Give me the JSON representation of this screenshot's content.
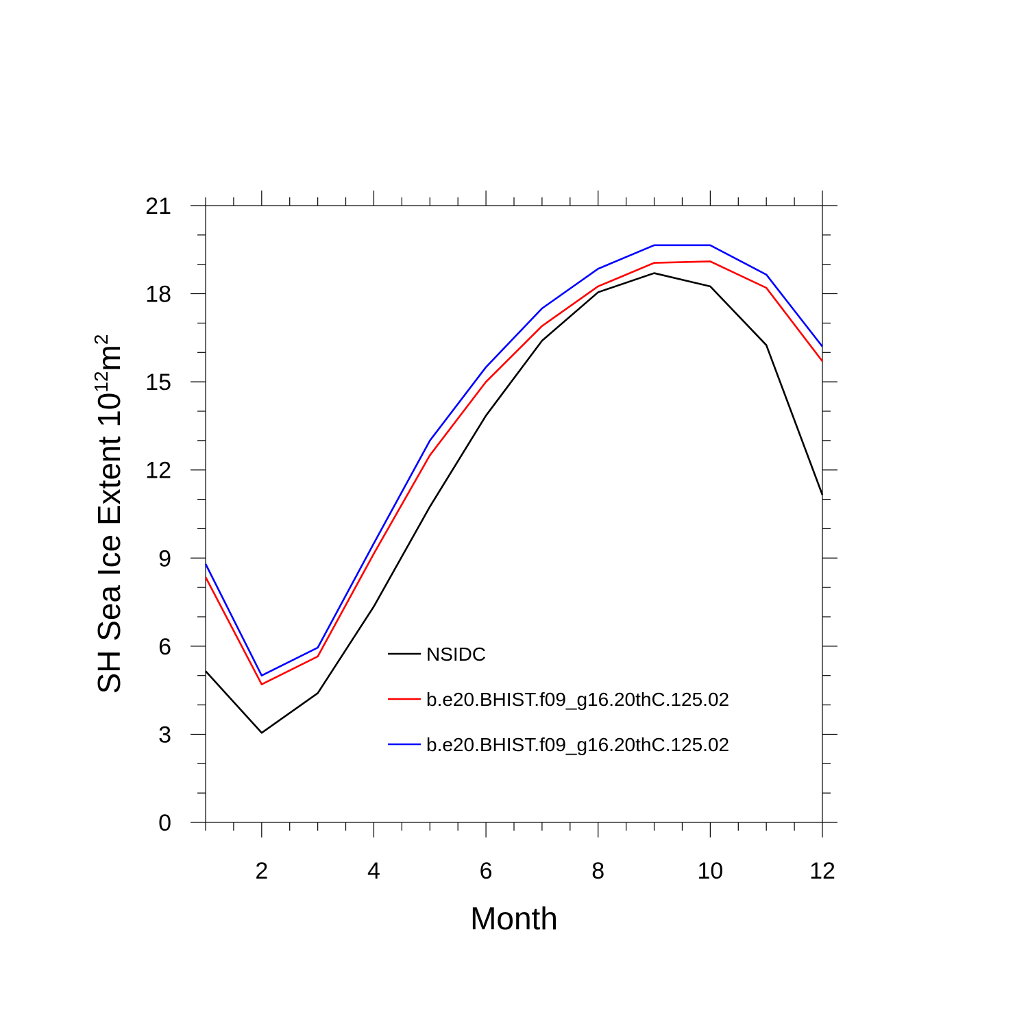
{
  "chart_data": {
    "type": "line",
    "title": "",
    "xlabel": "Month",
    "ylabel": "SH Sea Ice Extent 10",
    "ylabel_exponent": "12",
    "ylabel_unit": "m",
    "ylabel_unit_exponent": "2",
    "xlim": [
      1,
      12
    ],
    "ylim": [
      0,
      21
    ],
    "xticks": [
      "2",
      "4",
      "6",
      "8",
      "10",
      "12"
    ],
    "yticks": [
      "0",
      "3",
      "6",
      "9",
      "12",
      "15",
      "18",
      "21"
    ],
    "x": [
      1,
      2,
      3,
      4,
      5,
      6,
      7,
      8,
      9,
      10,
      11,
      12
    ],
    "series": [
      {
        "name": "NSIDC",
        "color": "#000000",
        "values": [
          5.15,
          3.05,
          4.4,
          7.35,
          10.75,
          13.85,
          16.4,
          18.05,
          18.7,
          18.25,
          16.25,
          11.15
        ]
      },
      {
        "name": "b.e20.BHIST.f09_g16.20thC.125.02",
        "color": "#ff0000",
        "values": [
          8.35,
          4.7,
          5.65,
          9.15,
          12.5,
          15.0,
          16.9,
          18.25,
          19.05,
          19.1,
          18.2,
          15.7
        ]
      },
      {
        "name": "b.e20.BHIST.f09_g16.20thC.125.02",
        "color": "#0000ff",
        "values": [
          8.8,
          5.0,
          5.95,
          9.5,
          13.0,
          15.5,
          17.5,
          18.85,
          19.65,
          19.65,
          18.65,
          16.2
        ]
      }
    ],
    "legend_position": "lower-middle",
    "grid": false
  }
}
